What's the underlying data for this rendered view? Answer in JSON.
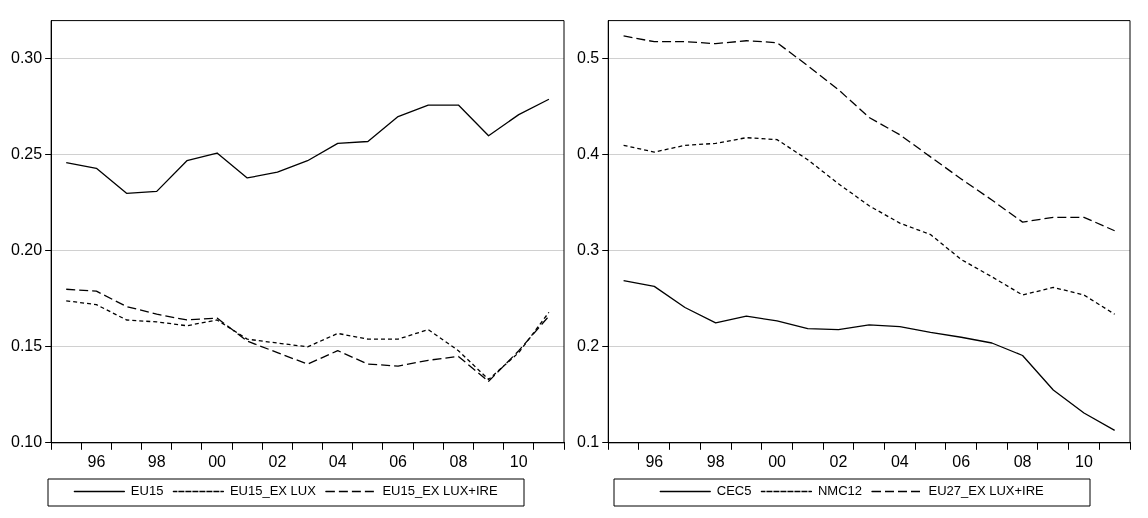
{
  "chart_data": [
    {
      "type": "line",
      "categories": [
        null,
        "96",
        null,
        "98",
        null,
        "00",
        null,
        "02",
        null,
        "04",
        null,
        "06",
        null,
        "08",
        null,
        "10",
        null
      ],
      "series": [
        {
          "name": "EU15",
          "color": "#000000",
          "line_style": "solid",
          "values": [
            0.246,
            0.243,
            0.23,
            0.231,
            0.247,
            0.251,
            0.238,
            0.241,
            0.247,
            0.256,
            0.257,
            0.27,
            0.276,
            0.276,
            0.26,
            0.271,
            0.279
          ]
        },
        {
          "name": "EU15_EX LUX",
          "color": "#000000",
          "line_style": "dotted",
          "values": [
            0.174,
            0.172,
            0.164,
            0.163,
            0.161,
            0.164,
            0.154,
            0.152,
            0.15,
            0.157,
            0.154,
            0.154,
            0.159,
            0.148,
            0.133,
            0.147,
            0.168
          ]
        },
        {
          "name": "EU15_EX LUX+IRE",
          "color": "#000000",
          "line_style": "dashed",
          "values": [
            0.18,
            0.179,
            0.171,
            0.167,
            0.164,
            0.165,
            0.153,
            0.147,
            0.141,
            0.148,
            0.141,
            0.14,
            0.143,
            0.145,
            0.132,
            0.148,
            0.166
          ]
        }
      ],
      "ylim": [
        0.1,
        0.32
      ],
      "yticks": [
        {
          "value": 0.1,
          "label": "0.10"
        },
        {
          "value": 0.15,
          "label": "0.15"
        },
        {
          "value": 0.2,
          "label": "0.20"
        },
        {
          "value": 0.25,
          "label": "0.25"
        },
        {
          "value": 0.3,
          "label": "0.30"
        }
      ],
      "grid": "y",
      "legend": "bottom",
      "marker": "none"
    },
    {
      "type": "line",
      "categories": [
        null,
        "96",
        null,
        "98",
        null,
        "00",
        null,
        "02",
        null,
        "04",
        null,
        "06",
        null,
        "08",
        null,
        "10",
        null
      ],
      "series": [
        {
          "name": "CEC5",
          "color": "#000000",
          "line_style": "solid",
          "values": [
            0.269,
            0.263,
            0.241,
            0.225,
            0.232,
            0.227,
            0.219,
            0.218,
            0.223,
            0.221,
            0.215,
            0.21,
            0.204,
            0.191,
            0.155,
            0.131,
            0.113
          ]
        },
        {
          "name": "NMC12",
          "color": "#000000",
          "line_style": "dotted",
          "values": [
            0.41,
            0.403,
            0.41,
            0.412,
            0.418,
            0.416,
            0.395,
            0.37,
            0.347,
            0.329,
            0.317,
            0.291,
            0.273,
            0.254,
            0.262,
            0.254,
            0.234
          ]
        },
        {
          "name": "EU27_EX LUX+IRE",
          "color": "#000000",
          "line_style": "dashed",
          "values": [
            0.524,
            0.518,
            0.518,
            0.516,
            0.519,
            0.517,
            0.493,
            0.468,
            0.439,
            0.421,
            0.398,
            0.375,
            0.353,
            0.33,
            0.335,
            0.335,
            0.321
          ]
        }
      ],
      "ylim": [
        0.1,
        0.54
      ],
      "yticks": [
        0.1,
        0.2,
        0.3,
        0.4,
        0.5
      ],
      "grid": "y",
      "legend": "bottom",
      "marker": "none"
    }
  ]
}
